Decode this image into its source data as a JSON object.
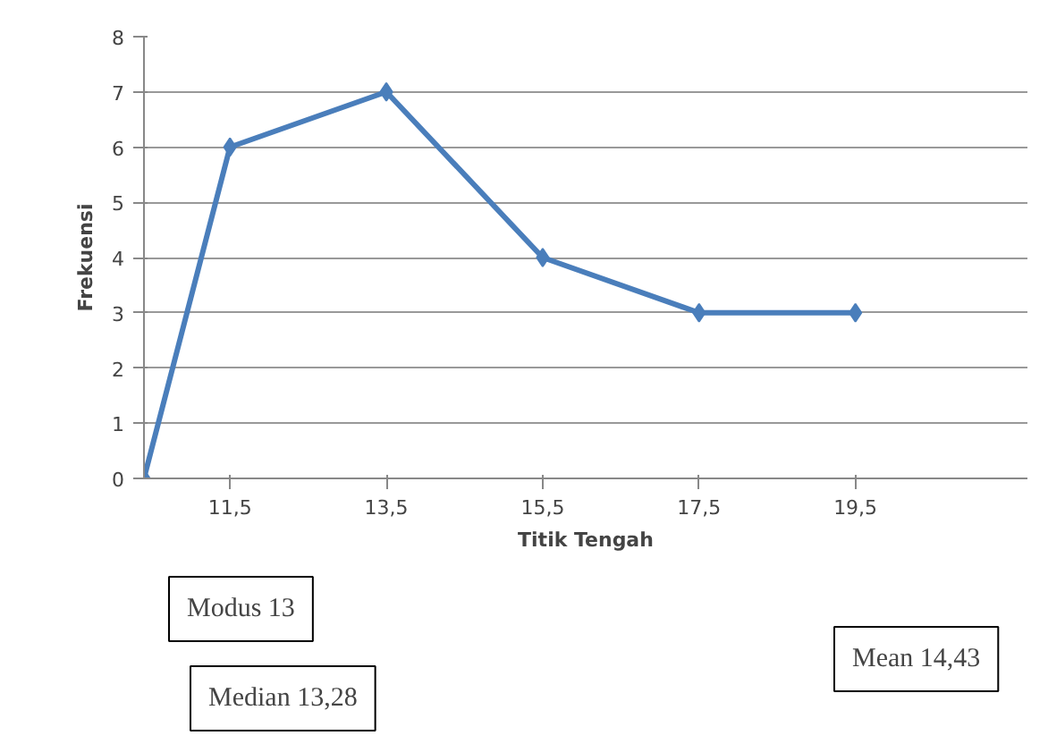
{
  "chart_data": {
    "type": "line",
    "xlabel": "Titik Tengah",
    "ylabel": "Frekuensi",
    "x": [
      10.4,
      11.5,
      13.5,
      15.5,
      17.5,
      19.5
    ],
    "series": [
      {
        "color": "#4a7ebb",
        "values": [
          0,
          6,
          7,
          4,
          3,
          3
        ]
      }
    ],
    "xlim": [
      10.4,
      21.7
    ],
    "xticks": [
      {
        "value": 11.5,
        "label": "11,5"
      },
      {
        "value": 13.5,
        "label": "13,5"
      },
      {
        "value": 15.5,
        "label": "15,5"
      },
      {
        "value": 17.5,
        "label": "17,5"
      },
      {
        "value": 19.5,
        "label": "19,5"
      }
    ],
    "ylim": [
      0,
      8
    ],
    "yticks": [
      0,
      1,
      2,
      3,
      4,
      5,
      6,
      7,
      8
    ],
    "grid": "y",
    "marker": "diamond",
    "line_style": "solid",
    "annotations": [
      "Modus 13",
      "Median 13,28",
      "Mean 14,43"
    ]
  }
}
